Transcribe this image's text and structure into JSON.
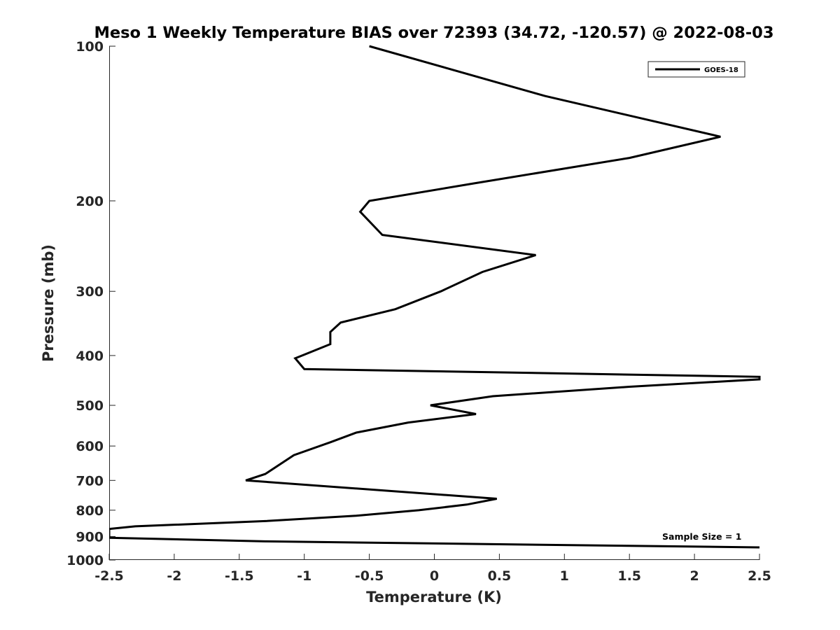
{
  "chart_data": {
    "type": "line",
    "title": "Meso 1 Weekly Temperature BIAS over 72393 (34.72, -120.57) @ 2022-08-03",
    "xlabel": "Temperature (K)",
    "ylabel": "Pressure (mb)",
    "xlim": [
      -2.5,
      2.5
    ],
    "ylim": [
      100,
      1000
    ],
    "y_scale": "log",
    "y_reversed": true,
    "xticks": [
      -2.5,
      -2,
      -1.5,
      -1,
      -0.5,
      0,
      0.5,
      1,
      1.5,
      2,
      2.5
    ],
    "xtick_labels": [
      "-2.5",
      "-2",
      "-1.5",
      "-1",
      "-0.5",
      "0",
      "0.5",
      "1",
      "1.5",
      "2",
      "2.5"
    ],
    "yticks": [
      100,
      200,
      300,
      400,
      500,
      600,
      700,
      800,
      900,
      1000
    ],
    "ytick_labels": [
      "100",
      "200",
      "300",
      "400",
      "500",
      "600",
      "700",
      "800",
      "900",
      "1000"
    ],
    "legend": {
      "position": "top-right",
      "entries": [
        "GOES-18"
      ]
    },
    "annotation": "Sample Size = 1",
    "series": [
      {
        "name": "GOES-18",
        "color": "#000000",
        "points": [
          {
            "t": -0.5,
            "p": 100
          },
          {
            "t": 0.85,
            "p": 125
          },
          {
            "t": 2.2,
            "p": 150
          },
          {
            "t": 1.5,
            "p": 165
          },
          {
            "t": 0.3,
            "p": 185
          },
          {
            "t": -0.5,
            "p": 200
          },
          {
            "t": -0.57,
            "p": 210
          },
          {
            "t": -0.4,
            "p": 233
          },
          {
            "t": 0.78,
            "p": 255
          },
          {
            "t": 0.37,
            "p": 275
          },
          {
            "t": 0.05,
            "p": 300
          },
          {
            "t": -0.3,
            "p": 325
          },
          {
            "t": -0.72,
            "p": 345
          },
          {
            "t": -0.8,
            "p": 360
          },
          {
            "t": -0.8,
            "p": 380
          },
          {
            "t": -1.07,
            "p": 405
          },
          {
            "t": -1.0,
            "p": 425
          },
          {
            "t": 2.5,
            "p": 440
          },
          {
            "t": 2.5,
            "p": 445
          },
          {
            "t": 1.5,
            "p": 460
          },
          {
            "t": 0.45,
            "p": 480
          },
          {
            "t": -0.03,
            "p": 500
          },
          {
            "t": 0.32,
            "p": 520
          },
          {
            "t": -0.2,
            "p": 540
          },
          {
            "t": -0.6,
            "p": 565
          },
          {
            "t": -0.8,
            "p": 590
          },
          {
            "t": -1.08,
            "p": 625
          },
          {
            "t": -1.3,
            "p": 680
          },
          {
            "t": -1.45,
            "p": 700
          },
          {
            "t": 0.48,
            "p": 760
          },
          {
            "t": 0.25,
            "p": 780
          },
          {
            "t": -0.12,
            "p": 800
          },
          {
            "t": -0.6,
            "p": 820
          },
          {
            "t": -1.3,
            "p": 840
          },
          {
            "t": -2.3,
            "p": 860
          },
          {
            "t": -2.5,
            "p": 870
          },
          {
            "t": -2.5,
            "p": 905
          },
          {
            "t": -1.3,
            "p": 920
          },
          {
            "t": 2.5,
            "p": 945
          }
        ]
      }
    ]
  }
}
